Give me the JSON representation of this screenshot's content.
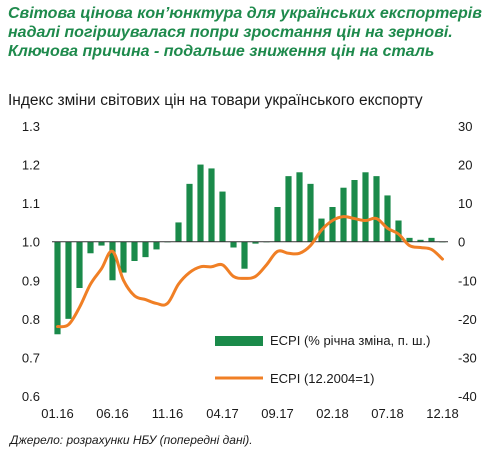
{
  "headline": "Світова цінова кон’юнктура для українських експортерів надалі погіршувалася попри зростання цін на зернові. Ключова причина - подальше зниження цін на сталь",
  "source": "Джерело: розрахунки НБУ (попередні дані).",
  "colors": {
    "bars": "#1a8a4a",
    "line": "#f07f25",
    "headline": "#1e8a4c"
  },
  "chart_data": {
    "type": "bar+line",
    "title": "Індекс зміни світових цін на товари українського експорту",
    "x_labels": [
      "01.16",
      "06.16",
      "11.16",
      "04.17",
      "09.17",
      "02.18",
      "07.18",
      "12.18"
    ],
    "months": [
      "01.16",
      "02.16",
      "03.16",
      "04.16",
      "05.16",
      "06.16",
      "07.16",
      "08.16",
      "09.16",
      "10.16",
      "11.16",
      "12.16",
      "01.17",
      "02.17",
      "03.17",
      "04.17",
      "05.17",
      "06.17",
      "07.17",
      "08.17",
      "09.17",
      "10.17",
      "11.17",
      "12.17",
      "01.18",
      "02.18",
      "03.18",
      "04.18",
      "05.18",
      "06.18",
      "07.18",
      "08.18",
      "09.18",
      "10.18",
      "11.18",
      "12.18"
    ],
    "left_axis": {
      "min": 0.6,
      "max": 1.3,
      "ticks": [
        "0.6",
        "0.7",
        "0.8",
        "0.9",
        "1.0",
        "1.1",
        "1.2",
        "1.3"
      ]
    },
    "right_axis": {
      "min": -40,
      "max": 30,
      "ticks": [
        "-40",
        "-30",
        "-20",
        "-10",
        "0",
        "10",
        "20",
        "30"
      ]
    },
    "series": [
      {
        "name": "ECPI (% річна зміна, п. ш.)",
        "type": "bar",
        "axis": "left",
        "values": [
          0.76,
          0.8,
          0.88,
          0.97,
          0.99,
          0.9,
          0.92,
          0.95,
          0.96,
          0.98,
          1.0,
          1.05,
          1.15,
          1.2,
          1.19,
          1.13,
          0.985,
          0.93,
          0.995,
          1.0,
          1.09,
          1.17,
          1.18,
          1.15,
          1.06,
          1.09,
          1.14,
          1.16,
          1.18,
          1.17,
          1.12,
          1.055,
          1.01,
          1.005,
          1.01,
          1.0
        ]
      },
      {
        "name": "ECPI (12.2004=1)",
        "type": "line",
        "axis": "right",
        "values": [
          -22,
          -21.5,
          -17,
          -11,
          -7,
          -2.5,
          -10,
          -14,
          -15,
          -16,
          -16,
          -11,
          -8,
          -6.5,
          -6.5,
          -6,
          -9,
          -9.5,
          -9,
          -6,
          -2.5,
          -3,
          -3,
          -1,
          3,
          5.5,
          6.5,
          6,
          5.5,
          6,
          3.5,
          2,
          -1,
          -1.5,
          -2,
          -4.5
        ]
      }
    ]
  }
}
